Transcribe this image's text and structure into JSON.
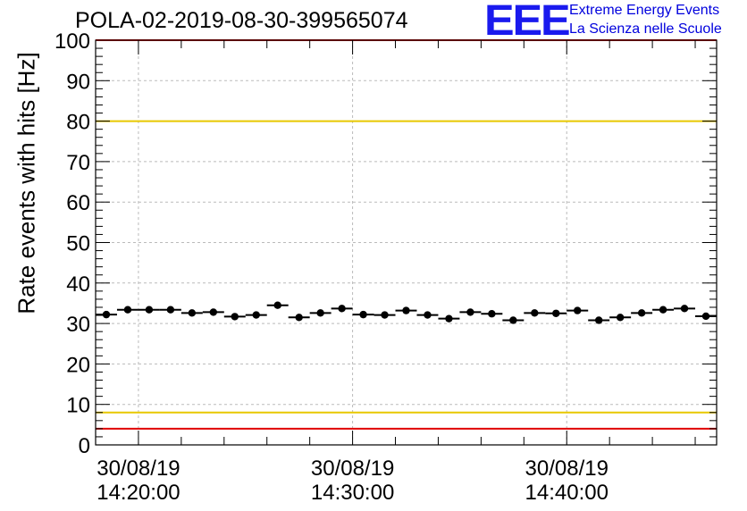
{
  "title": "POLA-02-2019-08-30-399565074",
  "logo": {
    "mark": "EEE",
    "line1": "Extreme Energy Events",
    "line2": "La Scienza nelle Scuole",
    "color": "#1a1aee"
  },
  "chart_data": {
    "type": "scatter",
    "ylabel": "Rate events with hits [Hz]",
    "ylim": [
      0,
      100
    ],
    "y_ticks": [
      "0",
      "10",
      "20",
      "30",
      "40",
      "50",
      "60",
      "70",
      "80",
      "90",
      "100"
    ],
    "x_ticks": [
      {
        "line1": "30/08/19",
        "line2": "14:20:00",
        "minute": 20
      },
      {
        "line1": "30/08/19",
        "line2": "14:30:00",
        "minute": 30
      },
      {
        "line1": "30/08/19",
        "line2": "14:40:00",
        "minute": 40
      }
    ],
    "xlim_minutes": [
      18,
      47
    ],
    "grid": true,
    "reference_lines": [
      {
        "value": 100,
        "color": "#e00000"
      },
      {
        "value": 80,
        "color": "#e8c800"
      },
      {
        "value": 8,
        "color": "#e8c800"
      },
      {
        "value": 4,
        "color": "#e00000"
      }
    ],
    "series": [
      {
        "bin_width_minutes": 1,
        "x": [
          18.5,
          19.5,
          20.5,
          21.5,
          22.5,
          23.5,
          24.5,
          25.5,
          26.5,
          27.5,
          28.5,
          29.5,
          30.5,
          31.5,
          32.5,
          33.5,
          34.5,
          35.5,
          36.5,
          37.5,
          38.5,
          39.5,
          40.5,
          41.5,
          42.5,
          43.5,
          44.5,
          45.5,
          46.5
        ],
        "y": [
          32.2,
          33.4,
          33.4,
          33.4,
          32.6,
          32.8,
          31.7,
          32.1,
          34.5,
          31.5,
          32.6,
          33.7,
          32.2,
          32.1,
          33.2,
          32.1,
          31.2,
          32.8,
          32.4,
          30.8,
          32.6,
          32.5,
          33.2,
          30.8,
          31.5,
          32.6,
          33.4,
          33.7,
          31.8
        ]
      }
    ]
  }
}
